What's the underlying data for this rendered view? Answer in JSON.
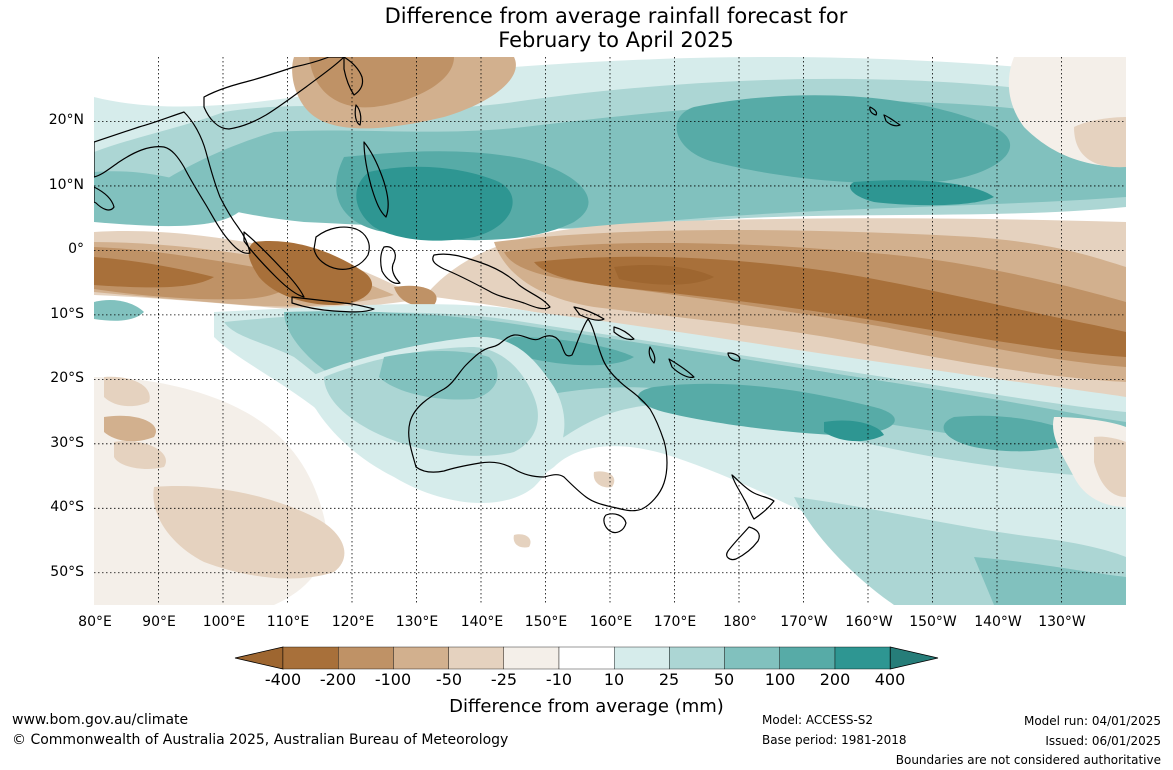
{
  "title": {
    "line1": "Difference from average rainfall forecast for",
    "line2": "February to April 2025"
  },
  "map": {
    "latitude_labels": [
      "20°N",
      "10°N",
      "0°",
      "10°S",
      "20°S",
      "30°S",
      "40°S",
      "50°S"
    ],
    "longitude_labels": [
      "80°E",
      "90°E",
      "100°E",
      "110°E",
      "120°E",
      "130°E",
      "140°E",
      "150°E",
      "160°E",
      "170°E",
      "180°",
      "170°W",
      "160°W",
      "150°W",
      "140°W",
      "130°W"
    ],
    "extent": {
      "lon_min": 80,
      "lon_max": 240,
      "lat_min": -55,
      "lat_max": 30
    },
    "fields": [
      {
        "name": "north-pacific-dry",
        "category": "-200",
        "lon": 128,
        "lat": 24
      },
      {
        "name": "equatorial-pacific-dry",
        "category": "-400",
        "lon": 165,
        "lat": -4
      },
      {
        "name": "indian-ocean-dry",
        "category": "-200",
        "lon": 95,
        "lat": -3
      },
      {
        "name": "maritime-continent-wet",
        "category": "200",
        "lon": 130,
        "lat": 8
      },
      {
        "name": "north-pacific-wet",
        "category": "100",
        "lon": 180,
        "lat": 15
      },
      {
        "name": "coral-sea-wet",
        "category": "100",
        "lon": 160,
        "lat": -18
      },
      {
        "name": "south-pacific-wet",
        "category": "100",
        "lon": 185,
        "lat": -25
      },
      {
        "name": "australia-wet",
        "category": "50",
        "lon": 135,
        "lat": -20
      },
      {
        "name": "southern-ocean-dry",
        "category": "-25",
        "lon": 110,
        "lat": -45
      }
    ]
  },
  "colorbar": {
    "title": "Difference from average (mm)",
    "tick_labels": [
      "-400",
      "-200",
      "-100",
      "-50",
      "-25",
      "-10",
      "10",
      "25",
      "50",
      "100",
      "200",
      "400"
    ],
    "colors": {
      "below_min": "#9e6630",
      "-400_-200": "#a8703a",
      "-200_-100": "#bf9266",
      "-100_-50": "#d2b08e",
      "-50_-25": "#e5d2bf",
      "-25_-10": "#f4efe9",
      "-10_10": "#ffffff",
      "10_25": "#d6eceb",
      "25_50": "#acd6d4",
      "50_100": "#81c1be",
      "100_200": "#57aba7",
      "200_400": "#2e9692",
      "above_max": "#267d79"
    }
  },
  "footer": {
    "website": "www.bom.gov.au/climate",
    "copyright": "© Commonwealth of Australia 2025, Australian Bureau of Meteorology",
    "model": "Model: ACCESS-S2",
    "base_period": "Base period: 1981-2018",
    "model_run": "Model run: 04/01/2025",
    "issued": "Issued: 06/01/2025",
    "disclaimer": "Boundaries are not considered authoritative"
  }
}
